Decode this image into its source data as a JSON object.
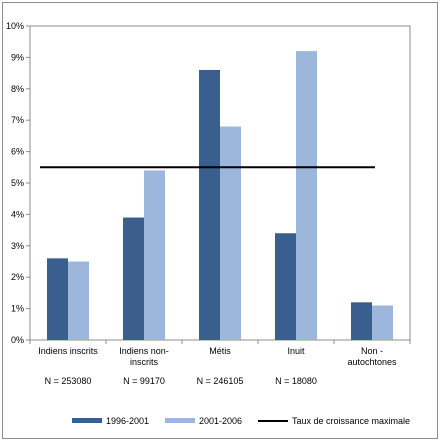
{
  "chart_data": {
    "type": "bar",
    "categories": [
      [
        "Indiens inscrits"
      ],
      [
        "Indiens non-",
        "inscrits"
      ],
      [
        "Métis"
      ],
      [
        "Inuit"
      ],
      [
        "Non -",
        "autochtones"
      ]
    ],
    "series": [
      {
        "name": "1996-2001",
        "color": "#3a5f8f",
        "values": [
          2.6,
          3.9,
          8.6,
          3.4,
          1.2
        ]
      },
      {
        "name": "2001-2006",
        "color": "#9db7dc",
        "values": [
          2.5,
          5.4,
          6.8,
          9.2,
          1.1
        ]
      }
    ],
    "reference_line": {
      "name": "Taux de croissance maximale",
      "value": 5.5,
      "color": "#000000"
    },
    "y_ticks": [
      "0%",
      "1%",
      "2%",
      "3%",
      "4%",
      "5%",
      "6%",
      "7%",
      "8%",
      "9%",
      "10%"
    ],
    "ylim": [
      0,
      10
    ],
    "unit": "%",
    "grid": false,
    "legend_position": "bottom",
    "sample_sizes": [
      "N = 253080",
      "N = 99170",
      "N = 246105",
      "N = 18080",
      ""
    ]
  }
}
